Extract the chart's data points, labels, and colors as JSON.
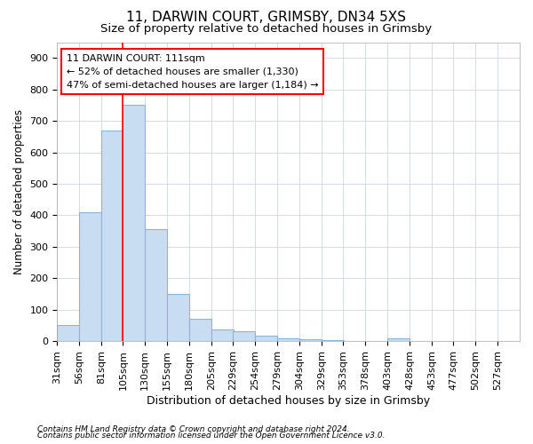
{
  "title1": "11, DARWIN COURT, GRIMSBY, DN34 5XS",
  "title2": "Size of property relative to detached houses in Grimsby",
  "xlabel": "Distribution of detached houses by size in Grimsby",
  "ylabel": "Number of detached properties",
  "footnote1": "Contains HM Land Registry data © Crown copyright and database right 2024.",
  "footnote2": "Contains public sector information licensed under the Open Government Licence v3.0.",
  "bins_left": [
    31,
    56,
    81,
    105,
    130,
    155,
    180,
    205,
    229,
    254,
    279,
    304,
    329,
    353,
    378,
    403,
    428,
    453,
    477,
    502,
    527
  ],
  "bin_width": 25,
  "bin_labels": [
    "31sqm",
    "56sqm",
    "81sqm",
    "105sqm",
    "130sqm",
    "155sqm",
    "180sqm",
    "205sqm",
    "229sqm",
    "254sqm",
    "279sqm",
    "304sqm",
    "329sqm",
    "353sqm",
    "378sqm",
    "403sqm",
    "428sqm",
    "453sqm",
    "477sqm",
    "502sqm",
    "527sqm"
  ],
  "values": [
    50,
    410,
    670,
    750,
    357,
    150,
    70,
    37,
    30,
    17,
    10,
    5,
    2,
    0,
    0,
    8,
    0,
    0,
    0,
    0,
    0
  ],
  "bar_color": "#c9ddf2",
  "bar_edge_color": "#8ab4d8",
  "red_line_x": 105,
  "annotation_line1": "11 DARWIN COURT: 111sqm",
  "annotation_line2": "← 52% of detached houses are smaller (1,330)",
  "annotation_line3": "47% of semi-detached houses are larger (1,184) →",
  "ylim": [
    0,
    950
  ],
  "yticks": [
    0,
    100,
    200,
    300,
    400,
    500,
    600,
    700,
    800,
    900
  ],
  "bg_color": "#ffffff",
  "grid_color": "#ccd6e8",
  "title1_fontsize": 11,
  "title2_fontsize": 9.5,
  "ylabel_fontsize": 8.5,
  "xlabel_fontsize": 9,
  "tick_fontsize": 8,
  "annot_fontsize": 8,
  "footnote_fontsize": 6.5
}
